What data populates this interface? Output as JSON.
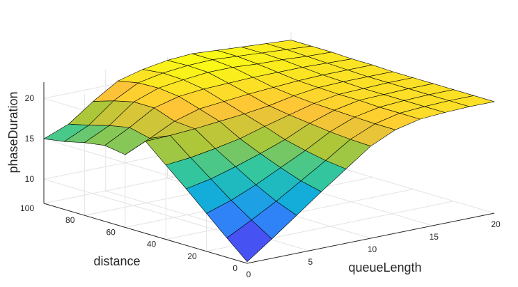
{
  "chart_data": {
    "type": "surface3d",
    "xlabel": "queueLength",
    "ylabel": "distance",
    "zlabel": "phaseDuration",
    "xlim": [
      0,
      20
    ],
    "ylim": [
      0,
      100
    ],
    "zlim": [
      7,
      22
    ],
    "xticks": [
      "0",
      "5",
      "10",
      "15",
      "20"
    ],
    "yticks": [
      "0",
      "20",
      "40",
      "60",
      "80",
      "100"
    ],
    "zticks": [
      "10",
      "15",
      "20"
    ],
    "grid": true,
    "colormap": "parula",
    "x": [
      0,
      2,
      4,
      6,
      8,
      10,
      12,
      14,
      16,
      18,
      20
    ],
    "y": [
      0,
      10,
      20,
      30,
      40,
      50,
      60,
      70,
      80,
      90,
      100
    ],
    "z": [
      [
        7.2,
        9.4,
        11.7,
        14.0,
        16.2,
        18.4,
        19.8,
        20.5,
        20.7,
        20.8,
        20.8
      ],
      [
        9.4,
        11.0,
        12.7,
        14.6,
        16.5,
        18.5,
        19.8,
        20.5,
        20.7,
        20.8,
        20.8
      ],
      [
        11.7,
        12.7,
        14.0,
        15.5,
        17.0,
        18.7,
        19.9,
        20.5,
        20.7,
        20.8,
        20.8
      ],
      [
        14.0,
        14.6,
        15.5,
        16.5,
        17.6,
        19.0,
        20.0,
        20.6,
        20.7,
        20.8,
        20.8
      ],
      [
        16.2,
        16.5,
        17.0,
        17.6,
        18.5,
        19.3,
        20.1,
        20.6,
        20.7,
        20.8,
        20.8
      ],
      [
        18.4,
        18.5,
        18.7,
        19.0,
        19.3,
        19.7,
        20.3,
        20.7,
        20.8,
        20.8,
        20.8
      ],
      [
        16.0,
        17.4,
        18.9,
        19.8,
        20.1,
        20.4,
        20.6,
        20.8,
        20.9,
        20.9,
        20.9
      ],
      [
        16.4,
        18.0,
        19.8,
        20.6,
        20.9,
        21.0,
        21.1,
        21.1,
        21.1,
        21.0,
        20.9
      ],
      [
        16.0,
        17.5,
        19.8,
        20.9,
        21.3,
        21.6,
        21.6,
        21.4,
        21.3,
        21.1,
        21.0
      ],
      [
        15.4,
        16.8,
        19.2,
        20.8,
        21.4,
        21.7,
        21.8,
        21.6,
        21.4,
        21.2,
        21.0
      ],
      [
        15.0,
        16.2,
        18.4,
        20.3,
        21.1,
        21.6,
        21.8,
        21.6,
        21.4,
        21.2,
        21.0
      ]
    ]
  }
}
